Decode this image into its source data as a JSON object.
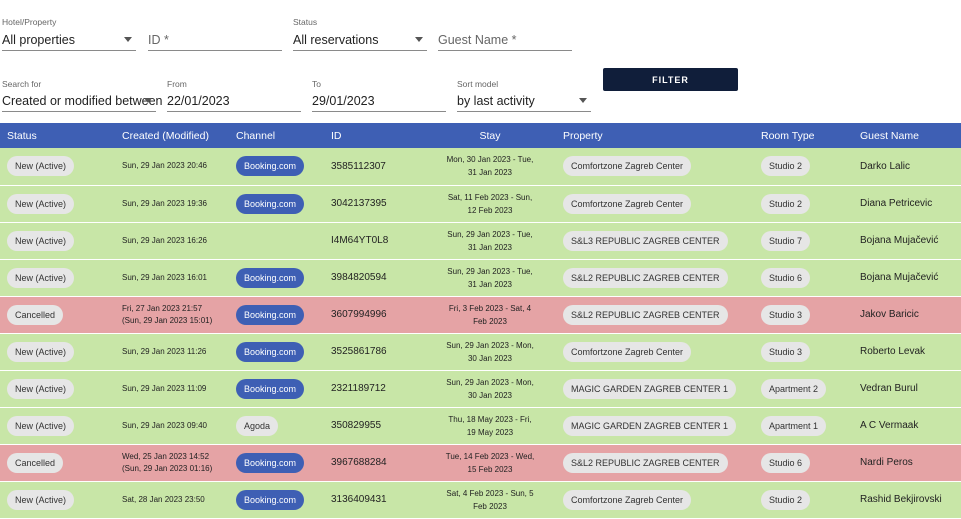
{
  "filters": {
    "hotel": {
      "label": "Hotel/Property",
      "value": "All properties"
    },
    "id": {
      "placeholder": "ID *"
    },
    "status": {
      "label": "Status",
      "value": "All reservations"
    },
    "guest_name": {
      "placeholder": "Guest Name *"
    },
    "search_for": {
      "label": "Search for",
      "value": "Created or modified between"
    },
    "from": {
      "label": "From",
      "value": "22/01/2023"
    },
    "to": {
      "label": "To",
      "value": "29/01/2023"
    },
    "sort": {
      "label": "Sort model",
      "value": "by last activity"
    },
    "filter_button": "FILTER"
  },
  "table": {
    "headers": [
      "Status",
      "Created (Modified)",
      "Channel",
      "ID",
      "Stay",
      "Property",
      "Room Type",
      "Guest Name"
    ],
    "rows": [
      {
        "status": "New (Active)",
        "state": "active",
        "created": "Sun, 29 Jan 2023 20:46",
        "modified": "",
        "channel": "Booking.com",
        "channel_style": "blue",
        "id": "3585112307",
        "stay1": "Mon, 30 Jan 2023 - Tue,",
        "stay2": "31 Jan 2023",
        "property": "Comfortzone Zagreb Center",
        "room": "Studio 2",
        "guest": "Darko Lalic"
      },
      {
        "status": "New (Active)",
        "state": "active",
        "created": "Sun, 29 Jan 2023 19:36",
        "modified": "",
        "channel": "Booking.com",
        "channel_style": "blue",
        "id": "3042137395",
        "stay1": "Sat, 11 Feb 2023 - Sun,",
        "stay2": "12 Feb 2023",
        "property": "Comfortzone Zagreb Center",
        "room": "Studio 2",
        "guest": "Diana Petricevic"
      },
      {
        "status": "New (Active)",
        "state": "active",
        "created": "Sun, 29 Jan 2023 16:26",
        "modified": "",
        "channel": "",
        "channel_style": "none",
        "id": "I4M64YT0L8",
        "stay1": "Sun, 29 Jan 2023 - Tue,",
        "stay2": "31 Jan 2023",
        "property": "S&L3 REPUBLIC ZAGREB CENTER",
        "room": "Studio 7",
        "guest": "Bojana Mujačević"
      },
      {
        "status": "New (Active)",
        "state": "active",
        "created": "Sun, 29 Jan 2023 16:01",
        "modified": "",
        "channel": "Booking.com",
        "channel_style": "blue",
        "id": "3984820594",
        "stay1": "Sun, 29 Jan 2023 - Tue,",
        "stay2": "31 Jan 2023",
        "property": "S&L2 REPUBLIC ZAGREB CENTER",
        "room": "Studio 6",
        "guest": "Bojana Mujačević"
      },
      {
        "status": "Cancelled",
        "state": "cancelled",
        "created": "Fri, 27 Jan 2023 21:57",
        "modified": "(Sun, 29 Jan 2023 15:01)",
        "channel": "Booking.com",
        "channel_style": "blue",
        "id": "3607994996",
        "stay1": "Fri, 3 Feb 2023 - Sat, 4",
        "stay2": "Feb 2023",
        "property": "S&L2 REPUBLIC ZAGREB CENTER",
        "room": "Studio 3",
        "guest": "Jakov Baricic"
      },
      {
        "status": "New (Active)",
        "state": "active",
        "created": "Sun, 29 Jan 2023 11:26",
        "modified": "",
        "channel": "Booking.com",
        "channel_style": "blue",
        "id": "3525861786",
        "stay1": "Sun, 29 Jan 2023 - Mon,",
        "stay2": "30 Jan 2023",
        "property": "Comfortzone Zagreb Center",
        "room": "Studio 3",
        "guest": "Roberto Levak"
      },
      {
        "status": "New (Active)",
        "state": "active",
        "created": "Sun, 29 Jan 2023 11:09",
        "modified": "",
        "channel": "Booking.com",
        "channel_style": "blue",
        "id": "2321189712",
        "stay1": "Sun, 29 Jan 2023 - Mon,",
        "stay2": "30 Jan 2023",
        "property": "MAGIC GARDEN ZAGREB CENTER 1",
        "room": "Apartment 2",
        "guest": "Vedran Burul"
      },
      {
        "status": "New (Active)",
        "state": "active",
        "created": "Sun, 29 Jan 2023 09:40",
        "modified": "",
        "channel": "Agoda",
        "channel_style": "grey",
        "id": "350829955",
        "stay1": "Thu, 18 May 2023 - Fri,",
        "stay2": "19 May 2023",
        "property": "MAGIC GARDEN ZAGREB CENTER 1",
        "room": "Apartment 1",
        "guest": "A C Vermaak"
      },
      {
        "status": "Cancelled",
        "state": "cancelled",
        "created": "Wed, 25 Jan 2023 14:52",
        "modified": "(Sun, 29 Jan 2023 01:16)",
        "channel": "Booking.com",
        "channel_style": "blue",
        "id": "3967688284",
        "stay1": "Tue, 14 Feb 2023 - Wed,",
        "stay2": "15 Feb 2023",
        "property": "S&L2 REPUBLIC ZAGREB CENTER",
        "room": "Studio 6",
        "guest": "Nardi Peros"
      },
      {
        "status": "New (Active)",
        "state": "active",
        "created": "Sat, 28 Jan 2023 23:50",
        "modified": "",
        "channel": "Booking.com",
        "channel_style": "blue",
        "id": "3136409431",
        "stay1": "Sat, 4 Feb 2023 - Sun, 5",
        "stay2": "Feb 2023",
        "property": "Comfortzone Zagreb Center",
        "room": "Studio 2",
        "guest": "Rashid Bekjirovski"
      }
    ]
  },
  "colors": {
    "header": "#3e5fb4",
    "active_row": "#c8e6a7",
    "cancelled_row": "#e5a3a5",
    "button": "#101e3a"
  }
}
